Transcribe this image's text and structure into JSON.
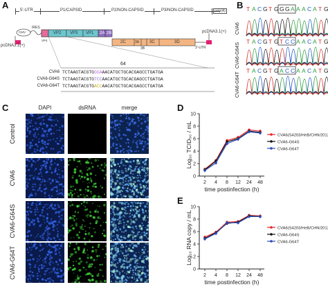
{
  "panels": {
    "a": {
      "label": "A",
      "genome": {
        "utr5": "5'-UTR",
        "p1": "P1/CAPSID",
        "p2": "P2/NON-CAPSID",
        "p3": "P3/NON-CAPSID",
        "polyA": "poly(A)"
      },
      "ires": "IRES",
      "cmv": "CMV",
      "vector_left": "pcDNA3.1(+)",
      "vector_right": "pcDNA3.1(+)",
      "vp": [
        "VP4",
        "VP2",
        "VP3",
        "VP1",
        "2A",
        "2B"
      ],
      "p23": [
        "2C",
        "3A",
        "3B",
        "3C",
        "3D"
      ],
      "utr3": "3'-UTR",
      "position": "64",
      "seqs": [
        {
          "name": "CVA6",
          "pre": "TCTAAGTACGTG",
          "mut": "GGA",
          "post": "AACATGCTGCACGAGCCTGATGA"
        },
        {
          "name": "CVA6-G64S",
          "pre": "TCTAAGTACGTG",
          "mut": "TCC",
          "post": "AACATGCTGCACGAGCCTGATGA"
        },
        {
          "name": "CVA6-G64T",
          "pre": "TCTAAGTACGTG",
          "mut": "ACC",
          "post": "AACATGCTGCACGAGCCTGATGA"
        }
      ]
    },
    "b": {
      "label": "B",
      "header_pre": "TACGTG",
      "header_box": "GGA",
      "header_post": "AACATG",
      "traces": [
        {
          "name": "CVA6",
          "pre": "TACGTG",
          "box": "GGA",
          "post": "AACATG"
        },
        {
          "name": "CVA6-G64S",
          "pre": "TACGTG",
          "box": "TCC",
          "post": "AACATG"
        },
        {
          "name": "CVA6-G64T",
          "pre": "TACGTG",
          "box": "ACC",
          "post": "AACATG"
        }
      ],
      "colors": {
        "A": "#2e9e3e",
        "C": "#2257c9",
        "G": "#222222",
        "T": "#d6322b"
      }
    },
    "c": {
      "label": "C",
      "columns": [
        "DAPI",
        "dsRNA",
        "merge"
      ],
      "rows": [
        "Control",
        "CVA6",
        "CVA6-G64S",
        "CVA6-G64T"
      ]
    },
    "d": {
      "label": "D"
    },
    "e": {
      "label": "E"
    }
  },
  "chart_data": [
    {
      "type": "line",
      "panel": "D",
      "xlabel": "time postinfection (h)",
      "ylabel": "Log₁₀ TCID₅₀ / mL",
      "x": [
        2,
        4,
        8,
        12,
        24,
        48
      ],
      "xticks": [
        "2",
        "4",
        "8",
        "12",
        "24",
        "48"
      ],
      "ylim": [
        0,
        10
      ],
      "yticks": [
        0,
        2,
        4,
        6,
        8,
        10
      ],
      "series": [
        {
          "name": "CVA6(S4203/HeB/CHN/2012)",
          "color": "#e8242b",
          "values": [
            1.1,
            2.5,
            5.7,
            6.2,
            7.4,
            7.2
          ]
        },
        {
          "name": "CVA6-G64S",
          "color": "#111111",
          "values": [
            1.0,
            2.4,
            5.5,
            6.0,
            7.2,
            7.0
          ]
        },
        {
          "name": "CVA6-G64T",
          "color": "#2a4db5",
          "values": [
            0.9,
            2.1,
            5.2,
            5.9,
            7.1,
            6.9
          ]
        }
      ],
      "legend": "right"
    },
    {
      "type": "line",
      "panel": "E",
      "xlabel": "time postinfection (h)",
      "ylabel": "Log₁₀ RNA copy / mL",
      "x": [
        2,
        4,
        8,
        12,
        24,
        48
      ],
      "xticks": [
        "2",
        "4",
        "8",
        "12",
        "24",
        "48"
      ],
      "ylim": [
        0,
        10
      ],
      "yticks": [
        0,
        2,
        4,
        6,
        8,
        10
      ],
      "series": [
        {
          "name": "CVA6(S4203/HeB/CHN/2012)",
          "color": "#e8242b",
          "values": [
            5.1,
            5.9,
            7.5,
            7.6,
            8.6,
            8.5
          ]
        },
        {
          "name": "CVA6-G64S",
          "color": "#111111",
          "values": [
            4.9,
            5.8,
            7.3,
            7.5,
            8.5,
            8.4
          ]
        },
        {
          "name": "CVA6-G64T",
          "color": "#2a4db5",
          "values": [
            4.8,
            5.7,
            7.4,
            7.4,
            8.4,
            8.4
          ]
        }
      ],
      "legend": "right"
    }
  ]
}
